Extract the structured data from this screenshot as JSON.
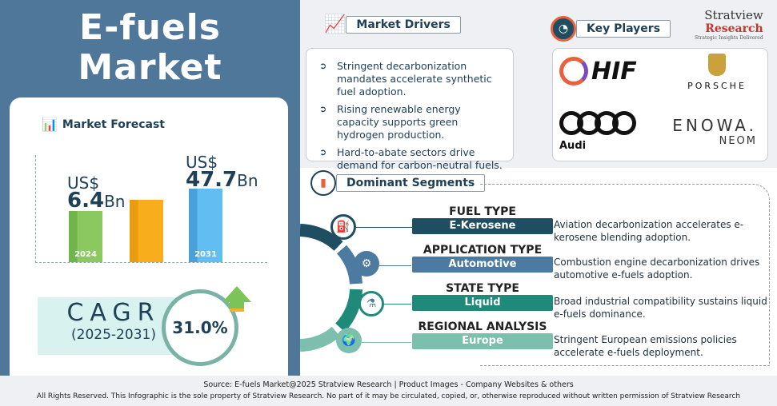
{
  "title": {
    "line1": "E-fuels",
    "line2": "Market"
  },
  "forecast": {
    "heading": "Market Forecast",
    "start": {
      "prefix": "US$",
      "value": "6.4",
      "unit": "Bn",
      "year": "2024"
    },
    "end": {
      "prefix": "US$",
      "value": "47.7",
      "unit": "Bn",
      "year": "2031"
    },
    "cagr_label": "CAGR",
    "cagr_period": "(2025-2031)",
    "cagr_value": "31.0%"
  },
  "chart_data": {
    "type": "bar",
    "categories": [
      "2024",
      "",
      "2031"
    ],
    "values": [
      6.4,
      null,
      47.7
    ],
    "unit": "US$ Bn"
  },
  "drivers": {
    "heading": "Market Drivers",
    "items": [
      "Stringent decarbonization mandates accelerate synthetic fuel adoption.",
      "Rising renewable energy capacity supports green hydrogen production.",
      "Hard-to-abate sectors drive demand for carbon-neutral fuels."
    ]
  },
  "players": {
    "heading": "Key Players",
    "logos": [
      "HIF",
      "PORSCHE",
      "Audi",
      "ENOWA.",
      "NEOM"
    ]
  },
  "brand": {
    "name": "Stratview",
    "sub": "Research",
    "tagline": "Strategic Insights Delivered"
  },
  "segments": {
    "heading": "Dominant Segments",
    "items": [
      {
        "title": "FUEL TYPE",
        "value": "E-Kerosene",
        "desc": "Aviation decarbonization accelerates e-kerosene blending adoption.",
        "color": "#1f4e63",
        "icon": "fuel-can-icon"
      },
      {
        "title": "APPLICATION TYPE",
        "value": "Automotive",
        "desc": "Combustion engine decarbonization drives automotive e-fuels adoption.",
        "color": "#4d7aa0",
        "icon": "gear-window-icon"
      },
      {
        "title": "STATE TYPE",
        "value": "Liquid",
        "desc": "Broad industrial compatibility sustains liquid e-fuels dominance.",
        "color": "#1f8a7a",
        "icon": "liquid-flask-icon"
      },
      {
        "title": "REGIONAL ANALYSIS",
        "value": "Europe",
        "desc": "Stringent European emissions policies accelerate e-fuels deployment.",
        "color": "#7cbfad",
        "icon": "europe-map-icon"
      }
    ]
  },
  "footer": {
    "source": "Source:  E-fuels Market@2025 Stratview Research | Product Images  - Company Websites & others",
    "rights": "All Rights Reserved. This Infographic is the sole property of Stratview Research. No part of it may be circulated, copied, or, otherwise reproduced without written permission of Stratview Research"
  }
}
